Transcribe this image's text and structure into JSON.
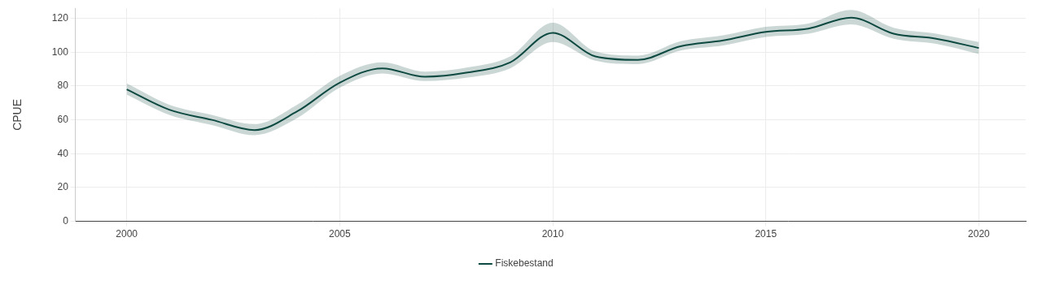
{
  "chart_data": {
    "type": "line",
    "x": [
      2000,
      2001,
      2002,
      2003,
      2004,
      2005,
      2006,
      2007,
      2008,
      2009,
      2010,
      2011,
      2012,
      2013,
      2014,
      2015,
      2016,
      2017,
      2018,
      2019,
      2020
    ],
    "series": [
      {
        "name": "Fiskebestand",
        "color": "#0d4a42",
        "values": [
          78,
          66,
          60,
          54,
          65,
          82,
          90.5,
          85.5,
          88,
          94,
          111.5,
          97.5,
          95.5,
          103.5,
          107,
          112,
          114,
          120.5,
          111,
          108,
          102.5
        ],
        "lower": [
          75,
          63,
          57,
          51,
          61,
          79,
          87.5,
          83,
          85,
          90.5,
          106,
          95,
          93,
          101,
          104,
          109,
          111,
          116.5,
          108,
          105,
          99
        ],
        "upper": [
          81.5,
          69,
          63,
          57.5,
          69,
          86,
          94,
          88.5,
          91,
          97.5,
          117.5,
          100.5,
          98,
          106.5,
          110,
          115,
          117,
          125,
          114.5,
          111,
          106
        ]
      }
    ],
    "y_label": "CPUE",
    "xlim": [
      1998.8,
      2021.1
    ],
    "xticks": [
      2000,
      2005,
      2010,
      2015,
      2020
    ],
    "ylim": [
      0,
      126
    ],
    "yticks": [
      0,
      20,
      40,
      60,
      80,
      100,
      120
    ],
    "grid": true,
    "legend": "bottom"
  }
}
